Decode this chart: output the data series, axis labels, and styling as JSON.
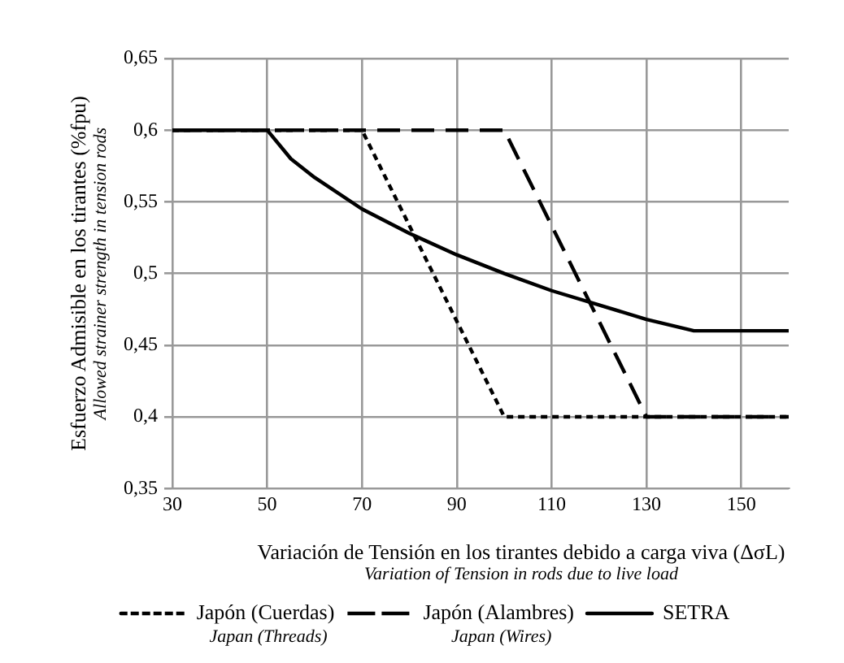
{
  "chart_data": {
    "type": "line",
    "xlabel": "Variación de Tensión en los tirantes debido a carga viva (ΔσL)\nVariation of Tension in rods due to live load",
    "ylabel": "Esfuerzo Admisible en los tirantes (%fpu)\nAllowed strainer strength in tension rods",
    "xlim": [
      30,
      160
    ],
    "xticks": [
      30,
      50,
      70,
      90,
      110,
      130,
      150
    ],
    "ylim": [
      0.35,
      0.65
    ],
    "yticks": [
      {
        "value": 0.35,
        "label": "0,35"
      },
      {
        "value": 0.4,
        "label": "0,4"
      },
      {
        "value": 0.45,
        "label": "0,45"
      },
      {
        "value": 0.5,
        "label": "0,5"
      },
      {
        "value": 0.55,
        "label": "0,55"
      },
      {
        "value": 0.6,
        "label": "0,6"
      },
      {
        "value": 0.65,
        "label": "0,65"
      }
    ],
    "grid": true,
    "legend": "bottom",
    "marker": "none",
    "series": [
      {
        "name": "Japón (Cuerdas)",
        "color": "#000000",
        "line_style": "dotted",
        "x": [
          30,
          70,
          100,
          160
        ],
        "values": [
          0.6,
          0.6,
          0.4,
          0.4
        ]
      },
      {
        "name": "Japón (Alambres)",
        "color": "#000000",
        "line_style": "dashed",
        "x": [
          30,
          100,
          130,
          160
        ],
        "values": [
          0.6,
          0.6,
          0.4,
          0.4
        ]
      },
      {
        "name": "SETRA",
        "color": "#000000",
        "line_style": "solid",
        "x": [
          30,
          50,
          55,
          60,
          70,
          80,
          90,
          100,
          110,
          120,
          130,
          140,
          160
        ],
        "values": [
          0.6,
          0.6,
          0.58,
          0.567,
          0.545,
          0.528,
          0.513,
          0.5,
          0.488,
          0.478,
          0.468,
          0.46,
          0.46
        ]
      }
    ],
    "annotations": [
      "Japan (Threads)",
      "Japan (Wires)"
    ]
  }
}
